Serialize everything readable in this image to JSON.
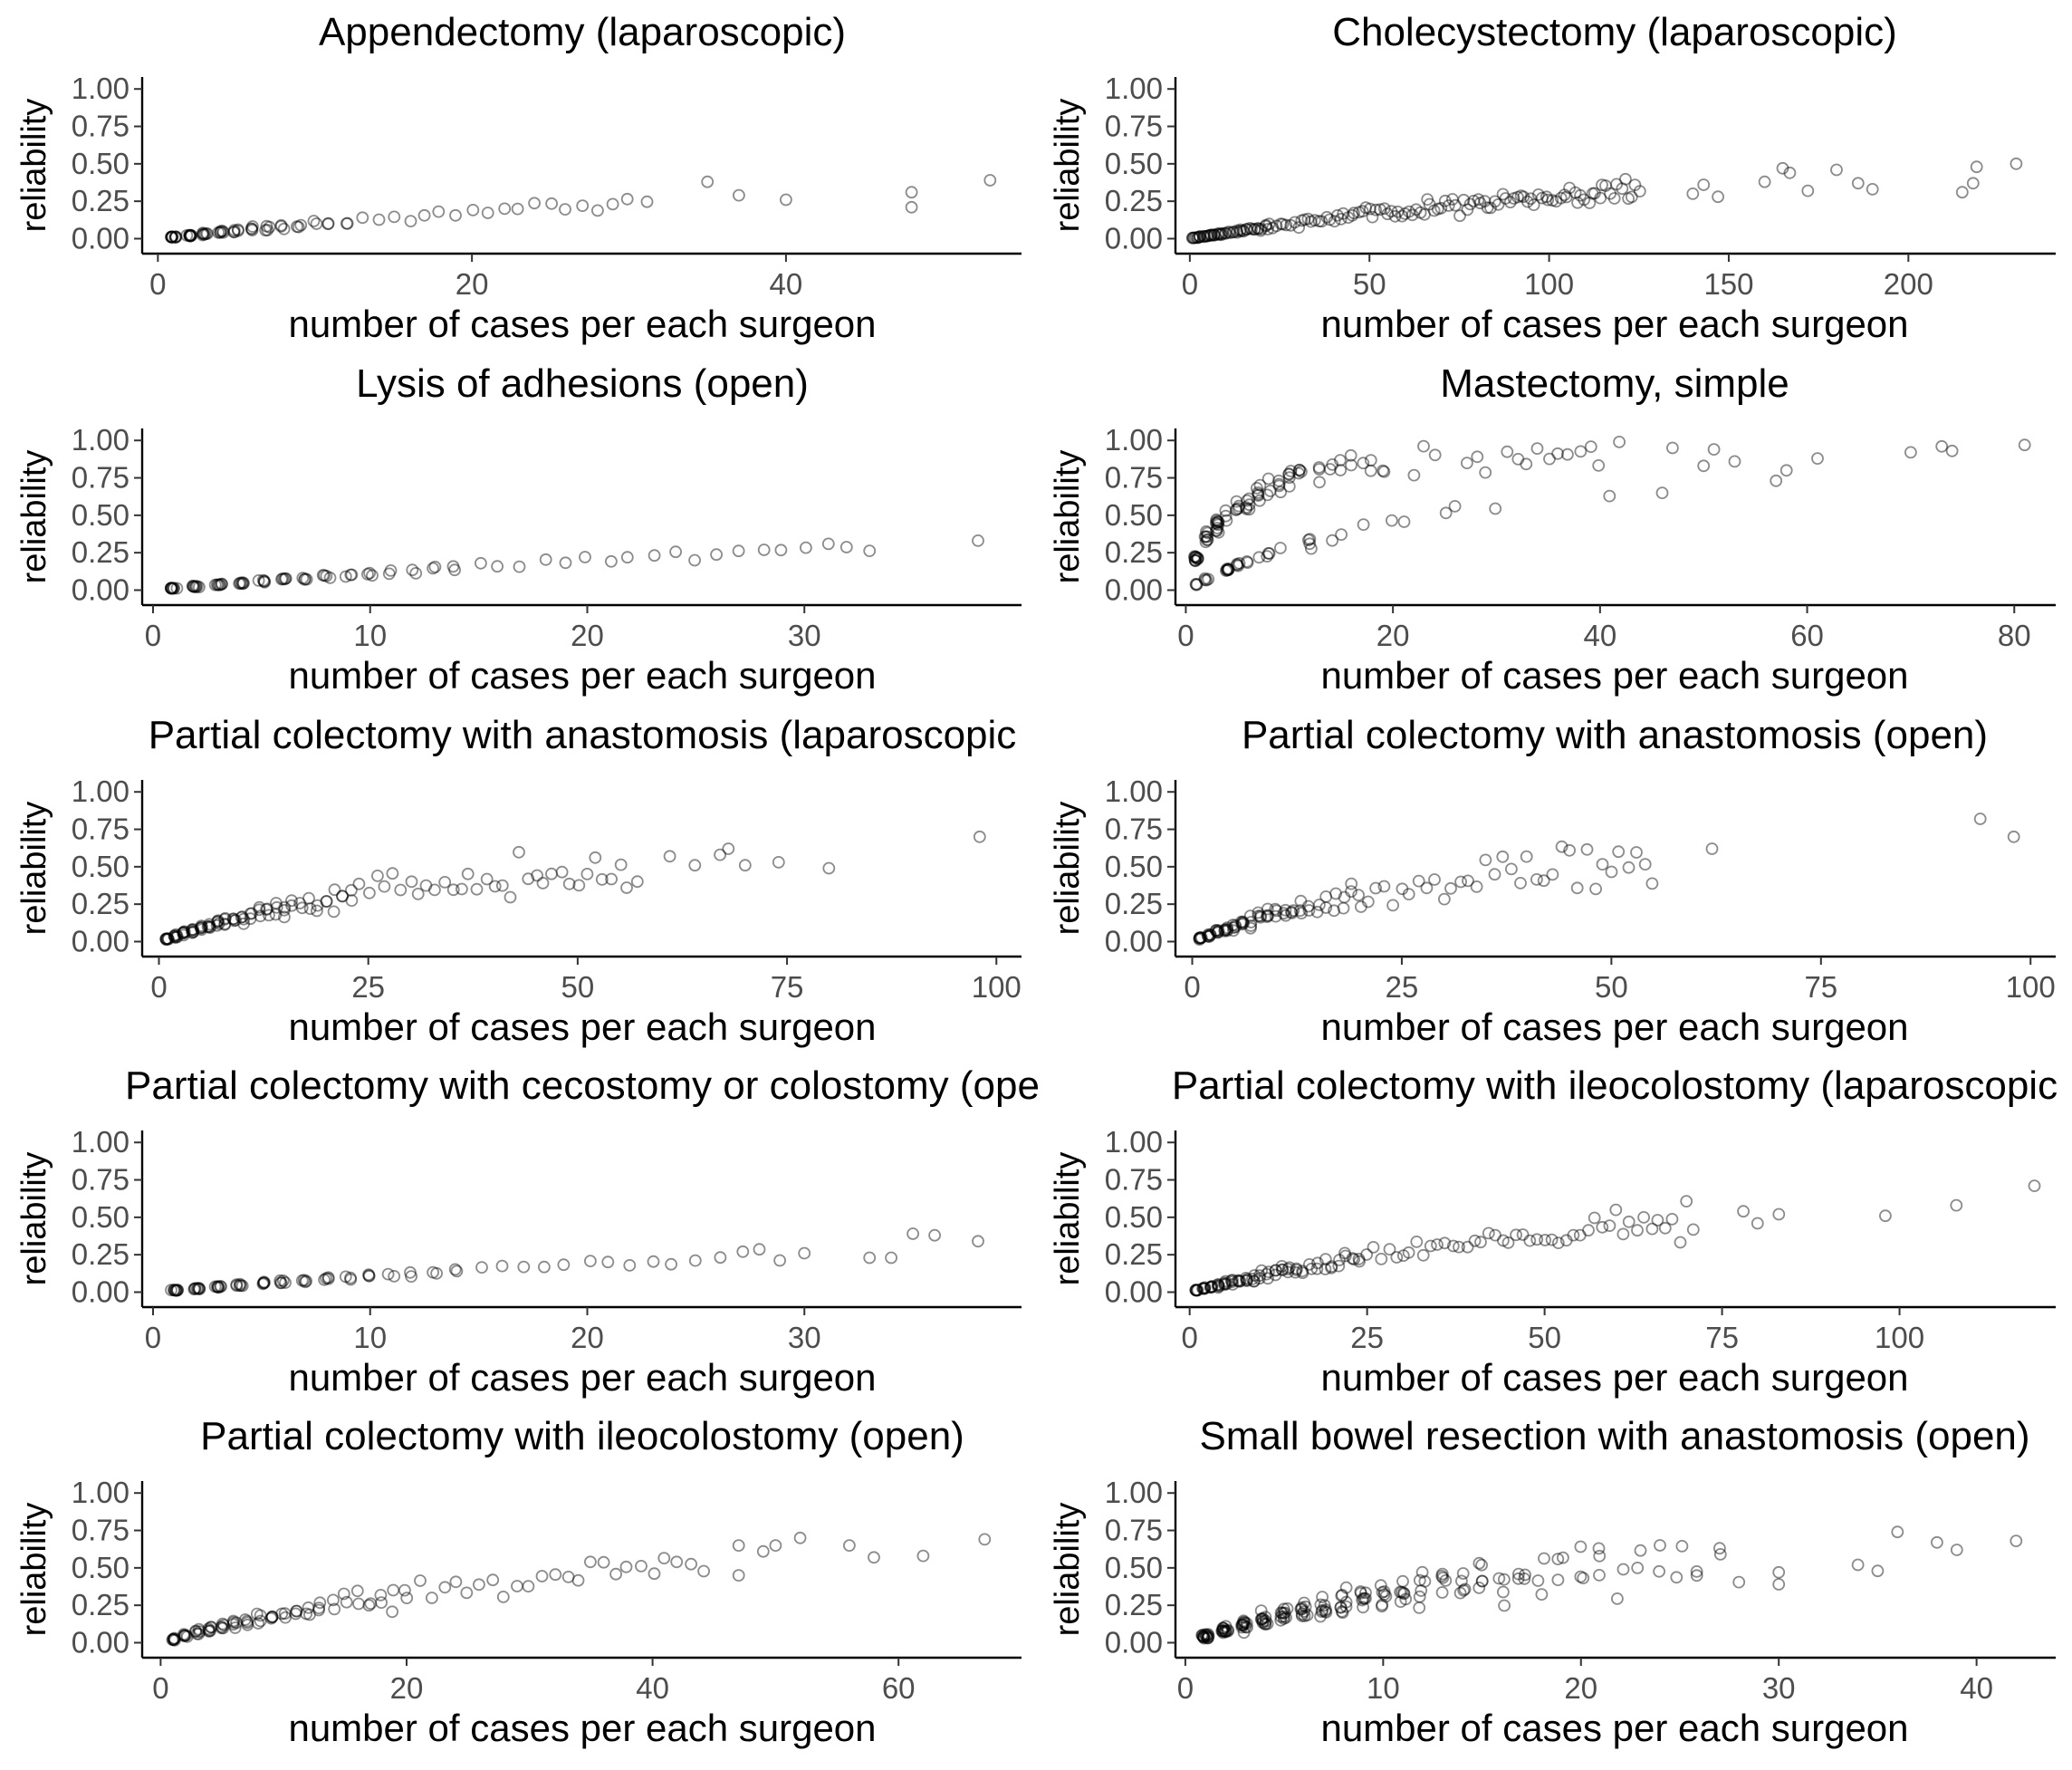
{
  "figure": {
    "background": "#ffffff",
    "point_color": "#000000",
    "point_shape": "open-circle",
    "point_alpha": 0.45,
    "layout": "5 rows x 2 columns"
  },
  "chart_data": [
    {
      "type": "scatter",
      "title": "Appendectomy (laparoscopic)",
      "xlabel": "number of cases per each surgeon",
      "ylabel": "reliability",
      "xlim": [
        -1,
        55
      ],
      "ylim": [
        -0.1,
        1.08
      ],
      "xticks": [
        0,
        20,
        40
      ],
      "xtick_labels": [
        "0",
        "20",
        "40"
      ],
      "yticks": [
        0,
        0.25,
        0.5,
        0.75,
        1.0
      ],
      "ytick_labels": [
        "0.00",
        "0.25",
        "0.50",
        "0.75",
        "1.00"
      ],
      "grid": false,
      "trend": {
        "shape": "sat",
        "a": 0.011,
        "spread": 0.35,
        "xmax": 31,
        "density": 10,
        "cdecay": 0.16
      },
      "points": [
        [
          35,
          0.38
        ],
        [
          37,
          0.29
        ],
        [
          40,
          0.26
        ],
        [
          48,
          0.31
        ],
        [
          48,
          0.21
        ],
        [
          53,
          0.39
        ]
      ]
    },
    {
      "type": "scatter",
      "title": "Cholecystectomy (laparoscopic)",
      "xlabel": "number of cases per each surgeon",
      "ylabel": "reliability",
      "xlim": [
        -4,
        241
      ],
      "ylim": [
        -0.1,
        1.08
      ],
      "xticks": [
        0,
        50,
        100,
        150,
        200
      ],
      "xtick_labels": [
        "0",
        "50",
        "100",
        "150",
        "200"
      ],
      "yticks": [
        0,
        0.25,
        0.5,
        0.75,
        1.0
      ],
      "ytick_labels": [
        "0.00",
        "0.25",
        "0.50",
        "0.75",
        "1.00"
      ],
      "grid": false,
      "trend": {
        "shape": "sat",
        "a": 0.0038,
        "spread": 0.38,
        "xmax": 125,
        "density": 3.5,
        "cdecay": 0.04
      },
      "points": [
        [
          140,
          0.3
        ],
        [
          143,
          0.36
        ],
        [
          147,
          0.28
        ],
        [
          160,
          0.38
        ],
        [
          165,
          0.47
        ],
        [
          167,
          0.44
        ],
        [
          172,
          0.32
        ],
        [
          180,
          0.46
        ],
        [
          186,
          0.37
        ],
        [
          190,
          0.33
        ],
        [
          215,
          0.31
        ],
        [
          218,
          0.37
        ],
        [
          219,
          0.48
        ],
        [
          230,
          0.5
        ]
      ]
    },
    {
      "type": "scatter",
      "title": "Lysis of adhesions (open)",
      "xlabel": "number of cases per each surgeon",
      "ylabel": "reliability",
      "xlim": [
        -0.5,
        40
      ],
      "ylim": [
        -0.1,
        1.08
      ],
      "xticks": [
        0,
        10,
        20,
        30
      ],
      "xtick_labels": [
        "0",
        "10",
        "20",
        "30"
      ],
      "yticks": [
        0,
        0.25,
        0.5,
        0.75,
        1.0
      ],
      "ytick_labels": [
        "0.00",
        "0.25",
        "0.50",
        "0.75",
        "1.00"
      ],
      "grid": false,
      "trend": {
        "shape": "sat",
        "a": 0.0125,
        "spread": 0.25,
        "xmax": 33,
        "density": 9,
        "cdecay": 0.13
      },
      "points": [
        [
          38,
          0.33
        ]
      ]
    },
    {
      "type": "scatter",
      "title": "Mastectomy, simple",
      "xlabel": "number of cases per each surgeon",
      "ylabel": "reliability",
      "xlim": [
        -1,
        84
      ],
      "ylim": [
        -0.1,
        1.08
      ],
      "xticks": [
        0,
        20,
        40,
        60,
        80
      ],
      "xtick_labels": [
        "0",
        "20",
        "40",
        "60",
        "80"
      ],
      "yticks": [
        0,
        0.25,
        0.5,
        0.75,
        1.0
      ],
      "ytick_labels": [
        "0.00",
        "0.25",
        "0.50",
        "0.75",
        "1.00"
      ],
      "grid": false,
      "trend": {
        "shape": "two",
        "a": 0.26,
        "b": 0.04,
        "spread": 0.2,
        "xmax": 42,
        "density": 14,
        "cdecay": 0.12
      },
      "points": [
        [
          46,
          0.65
        ],
        [
          47,
          0.95
        ],
        [
          50,
          0.83
        ],
        [
          51,
          0.94
        ],
        [
          53,
          0.86
        ],
        [
          57,
          0.73
        ],
        [
          58,
          0.8
        ],
        [
          61,
          0.88
        ],
        [
          70,
          0.92
        ],
        [
          73,
          0.96
        ],
        [
          74,
          0.93
        ],
        [
          81,
          0.97
        ]
      ]
    },
    {
      "type": "scatter",
      "title": "Partial colectomy with anastomosis (laparoscopic",
      "xlabel": "number of cases per each surgeon",
      "ylabel": "reliability",
      "xlim": [
        -2,
        103
      ],
      "ylim": [
        -0.1,
        1.08
      ],
      "xticks": [
        0,
        25,
        50,
        75,
        100
      ],
      "xtick_labels": [
        "0",
        "25",
        "50",
        "75",
        "100"
      ],
      "yticks": [
        0,
        0.25,
        0.5,
        0.75,
        1.0
      ],
      "ytick_labels": [
        "0.00",
        "0.25",
        "0.50",
        "0.75",
        "1.00"
      ],
      "grid": false,
      "trend": {
        "shape": "sat",
        "a": 0.019,
        "spread": 0.45,
        "xmax": 57,
        "density": 7,
        "cdecay": 0.07
      },
      "points": [
        [
          61,
          0.57
        ],
        [
          64,
          0.51
        ],
        [
          67,
          0.58
        ],
        [
          68,
          0.62
        ],
        [
          70,
          0.51
        ],
        [
          74,
          0.53
        ],
        [
          80,
          0.49
        ],
        [
          98,
          0.7
        ]
      ]
    },
    {
      "type": "scatter",
      "title": "Partial colectomy with anastomosis (open)",
      "xlabel": "number of cases per each surgeon",
      "ylabel": "reliability",
      "xlim": [
        -2,
        103
      ],
      "ylim": [
        -0.1,
        1.08
      ],
      "xticks": [
        0,
        25,
        50,
        75,
        100
      ],
      "xtick_labels": [
        "0",
        "25",
        "50",
        "75",
        "100"
      ],
      "yticks": [
        0,
        0.25,
        0.5,
        0.75,
        1.0
      ],
      "ytick_labels": [
        "0.00",
        "0.25",
        "0.50",
        "0.75",
        "1.00"
      ],
      "grid": false,
      "trend": {
        "shape": "sat",
        "a": 0.022,
        "spread": 0.45,
        "xmax": 55,
        "density": 7,
        "cdecay": 0.08
      },
      "points": [
        [
          62,
          0.62
        ],
        [
          94,
          0.82
        ],
        [
          98,
          0.7
        ]
      ]
    },
    {
      "type": "scatter",
      "title": "Partial colectomy with cecostomy or colostomy (ope",
      "xlabel": "number of cases per each surgeon",
      "ylabel": "reliability",
      "xlim": [
        -0.5,
        40
      ],
      "ylim": [
        -0.1,
        1.08
      ],
      "xticks": [
        0,
        10,
        20,
        30
      ],
      "xtick_labels": [
        "0",
        "10",
        "20",
        "30"
      ],
      "yticks": [
        0,
        0.25,
        0.5,
        0.75,
        1.0
      ],
      "ytick_labels": [
        "0.00",
        "0.25",
        "0.50",
        "0.75",
        "1.00"
      ],
      "grid": false,
      "trend": {
        "shape": "sat",
        "a": 0.0125,
        "spread": 0.28,
        "xmax": 29,
        "density": 9,
        "cdecay": 0.13
      },
      "points": [
        [
          30,
          0.26
        ],
        [
          33,
          0.23
        ],
        [
          34,
          0.23
        ],
        [
          35,
          0.39
        ],
        [
          36,
          0.38
        ],
        [
          38,
          0.34
        ]
      ]
    },
    {
      "type": "scatter",
      "title": "Partial colectomy with ileocolostomy (laparoscopic",
      "xlabel": "number of cases per each surgeon",
      "ylabel": "reliability",
      "xlim": [
        -2,
        122
      ],
      "ylim": [
        -0.1,
        1.08
      ],
      "xticks": [
        0,
        25,
        50,
        75,
        100
      ],
      "xtick_labels": [
        "0",
        "25",
        "50",
        "75",
        "100"
      ],
      "yticks": [
        0,
        0.25,
        0.5,
        0.75,
        1.0
      ],
      "ytick_labels": [
        "0.00",
        "0.25",
        "0.50",
        "0.75",
        "1.00"
      ],
      "grid": false,
      "trend": {
        "shape": "sat",
        "a": 0.0125,
        "spread": 0.4,
        "xmax": 71,
        "density": 6,
        "cdecay": 0.06
      },
      "points": [
        [
          78,
          0.54
        ],
        [
          80,
          0.46
        ],
        [
          83,
          0.52
        ],
        [
          98,
          0.51
        ],
        [
          108,
          0.58
        ],
        [
          119,
          0.71
        ]
      ]
    },
    {
      "type": "scatter",
      "title": "Partial colectomy with ileocolostomy (open)",
      "xlabel": "number of cases per each surgeon",
      "ylabel": "reliability",
      "xlim": [
        -1.5,
        70
      ],
      "ylim": [
        -0.1,
        1.08
      ],
      "xticks": [
        0,
        20,
        40,
        60
      ],
      "xtick_labels": [
        "0",
        "20",
        "40",
        "60"
      ],
      "yticks": [
        0,
        0.25,
        0.5,
        0.75,
        1.0
      ],
      "ytick_labels": [
        "0.00",
        "0.25",
        "0.50",
        "0.75",
        "1.00"
      ],
      "grid": false,
      "trend": {
        "shape": "sat",
        "a": 0.024,
        "spread": 0.42,
        "xmax": 44,
        "density": 7,
        "cdecay": 0.08
      },
      "points": [
        [
          47,
          0.45
        ],
        [
          47,
          0.65
        ],
        [
          49,
          0.61
        ],
        [
          50,
          0.65
        ],
        [
          52,
          0.7
        ],
        [
          56,
          0.65
        ],
        [
          58,
          0.57
        ],
        [
          62,
          0.58
        ],
        [
          67,
          0.69
        ]
      ]
    },
    {
      "type": "scatter",
      "title": "Small bowel resection with anastomosis (open)",
      "xlabel": "number of cases per each surgeon",
      "ylabel": "reliability",
      "xlim": [
        -0.5,
        44
      ],
      "ylim": [
        -0.1,
        1.08
      ],
      "xticks": [
        0,
        10,
        20,
        30,
        40
      ],
      "xtick_labels": [
        "0",
        "10",
        "20",
        "30",
        "40"
      ],
      "yticks": [
        0,
        0.25,
        0.5,
        0.75,
        1.0
      ],
      "ytick_labels": [
        "0.00",
        "0.25",
        "0.50",
        "0.75",
        "1.00"
      ],
      "grid": false,
      "trend": {
        "shape": "sat",
        "a": 0.045,
        "spread": 0.5,
        "xmax": 28,
        "density": 16,
        "cdecay": 0.09
      },
      "points": [
        [
          30,
          0.47
        ],
        [
          30,
          0.39
        ],
        [
          34,
          0.52
        ],
        [
          35,
          0.48
        ],
        [
          36,
          0.74
        ],
        [
          38,
          0.67
        ],
        [
          39,
          0.62
        ],
        [
          42,
          0.68
        ]
      ]
    }
  ]
}
